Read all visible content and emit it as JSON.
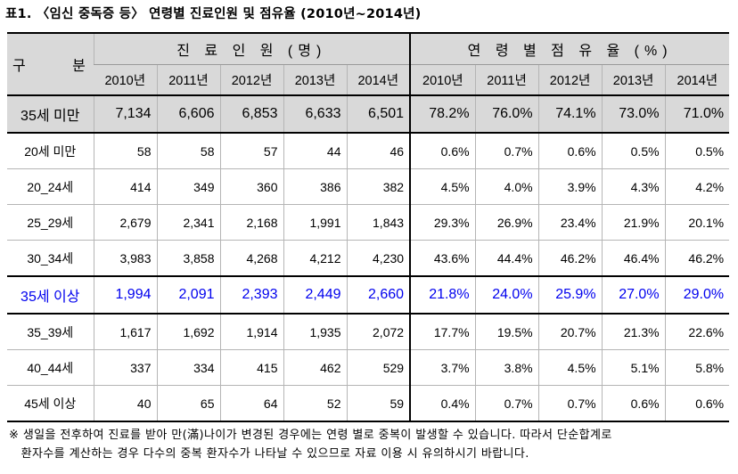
{
  "title": "표1.  〈임신 중독증 등〉 연령별 진료인원 및 점유율 (2010년~2014년)",
  "header": {
    "gubun": "구 분",
    "patients_group": "진 료 인 원 (명)",
    "share_group": "연 령 별 점 유 율 (%)",
    "years": [
      "2010년",
      "2011년",
      "2012년",
      "2013년",
      "2014년"
    ]
  },
  "rows": [
    {
      "label": "35세 미만",
      "patients": [
        "7,134",
        "6,606",
        "6,853",
        "6,633",
        "6,501"
      ],
      "shares": [
        "78.2%",
        "76.0%",
        "74.1%",
        "73.0%",
        "71.0%"
      ]
    },
    {
      "label": "20세 미만",
      "patients": [
        "58",
        "58",
        "57",
        "44",
        "46"
      ],
      "shares": [
        "0.6%",
        "0.7%",
        "0.6%",
        "0.5%",
        "0.5%"
      ]
    },
    {
      "label": "20_24세",
      "patients": [
        "414",
        "349",
        "360",
        "386",
        "382"
      ],
      "shares": [
        "4.5%",
        "4.0%",
        "3.9%",
        "4.3%",
        "4.2%"
      ]
    },
    {
      "label": "25_29세",
      "patients": [
        "2,679",
        "2,341",
        "2,168",
        "1,991",
        "1,843"
      ],
      "shares": [
        "29.3%",
        "26.9%",
        "23.4%",
        "21.9%",
        "20.1%"
      ]
    },
    {
      "label": "30_34세",
      "patients": [
        "3,983",
        "3,858",
        "4,268",
        "4,212",
        "4,230"
      ],
      "shares": [
        "43.6%",
        "44.4%",
        "46.2%",
        "46.4%",
        "46.2%"
      ]
    },
    {
      "label": "35세 이상",
      "patients": [
        "1,994",
        "2,091",
        "2,393",
        "2,449",
        "2,660"
      ],
      "shares": [
        "21.8%",
        "24.0%",
        "25.9%",
        "27.0%",
        "29.0%"
      ]
    },
    {
      "label": "35_39세",
      "patients": [
        "1,617",
        "1,692",
        "1,914",
        "1,935",
        "2,072"
      ],
      "shares": [
        "17.7%",
        "19.5%",
        "20.7%",
        "21.3%",
        "22.6%"
      ]
    },
    {
      "label": "40_44세",
      "patients": [
        "337",
        "334",
        "415",
        "462",
        "529"
      ],
      "shares": [
        "3.7%",
        "3.8%",
        "4.5%",
        "5.1%",
        "5.8%"
      ]
    },
    {
      "label": "45세 이상",
      "patients": [
        "40",
        "65",
        "64",
        "52",
        "59"
      ],
      "shares": [
        "0.4%",
        "0.7%",
        "0.7%",
        "0.6%",
        "0.6%"
      ]
    }
  ],
  "note_line1": "※ 생일을 전후하여 진료를 받아 만(滿)나이가 변경된 경우에는 연령 별로 중복이 발생할 수 있습니다. 따라서 단순합계로",
  "note_line2": "   환자수를 계산하는 경우 다수의 중복 환자수가 나타날 수 있으므로 자료 이용 시 유의하시기 바랍니다.",
  "colors": {
    "header_bg": "#d9d9d9",
    "highlight_text": "#0000ee"
  }
}
